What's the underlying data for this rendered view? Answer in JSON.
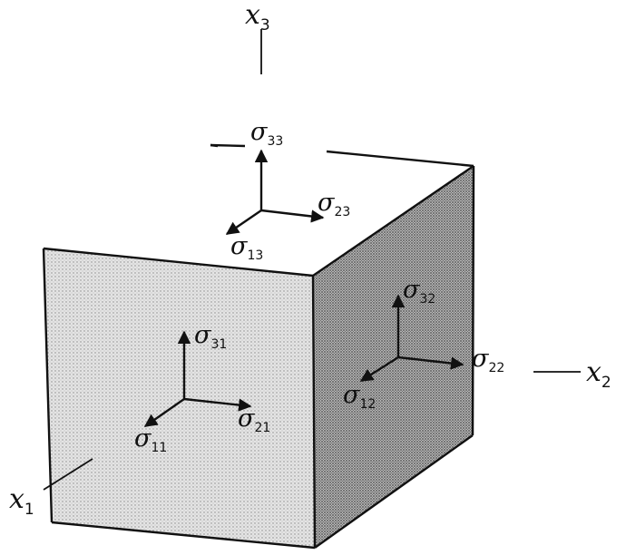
{
  "axes": {
    "x1": {
      "base": "x",
      "sub": "1"
    },
    "x2": {
      "base": "x",
      "sub": "2"
    },
    "x3": {
      "base": "x",
      "sub": "3"
    }
  },
  "stresses": {
    "top": {
      "s33": {
        "base": "σ",
        "sub": "33"
      },
      "s23": {
        "base": "σ",
        "sub": "23"
      },
      "s13": {
        "base": "σ",
        "sub": "13"
      }
    },
    "front": {
      "s31": {
        "base": "σ",
        "sub": "31"
      },
      "s21": {
        "base": "σ",
        "sub": "21"
      },
      "s11": {
        "base": "σ",
        "sub": "11"
      }
    },
    "side": {
      "s32": {
        "base": "σ",
        "sub": "32"
      },
      "s22": {
        "base": "σ",
        "sub": "22"
      },
      "s12": {
        "base": "σ",
        "sub": "12"
      }
    }
  },
  "colors": {
    "ink": "#111111",
    "front_face": "#dcdcdc",
    "side_face": "#9e9e9e",
    "top_face": "#ffffff"
  }
}
